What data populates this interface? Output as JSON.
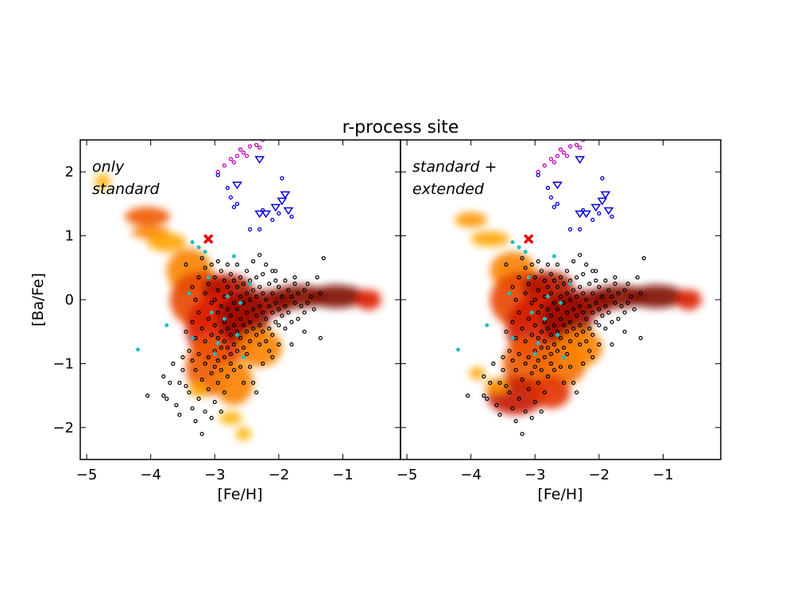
{
  "chart_data": {
    "type": "scatter",
    "title": "r-process site",
    "xlabel": "[Fe/H]",
    "ylabel": "[Ba/Fe]",
    "xlim": [
      -5.1,
      -0.1
    ],
    "ylim": [
      -2.5,
      2.5
    ],
    "xticks": [
      -5,
      -4,
      -3,
      -2,
      -1
    ],
    "yticks": [
      -2,
      -1,
      0,
      1,
      2
    ],
    "xtick_labels": [
      "−5",
      "−4",
      "−3",
      "−2",
      "−1"
    ],
    "ytick_labels": [
      "−2",
      "−1",
      "0",
      "1",
      "2"
    ],
    "grid": false,
    "colors": {
      "observations": "#000000",
      "cyan_points": "#1fbfbf",
      "magenta_points": "#bf00bf",
      "blue_points": "#0000dd",
      "cross": "#ee0000",
      "density_low": "#ffff00",
      "density_mid": "#ff6600",
      "density_high": "#5a0000"
    },
    "panels": [
      {
        "annotation": [
          "only",
          "standard"
        ],
        "density_model": [
          {
            "x": -4.75,
            "y": 1.85,
            "w": 0.12,
            "h": 0.12,
            "level": 0.3
          },
          {
            "x": -4.05,
            "y": 1.3,
            "w": 0.35,
            "h": 0.15,
            "level": 0.55
          },
          {
            "x": -4.0,
            "y": 1.05,
            "w": 0.3,
            "h": 0.1,
            "level": 0.45
          },
          {
            "x": -3.75,
            "y": 0.9,
            "w": 0.3,
            "h": 0.15,
            "level": 0.35
          },
          {
            "x": -3.4,
            "y": 0.45,
            "w": 0.35,
            "h": 0.35,
            "level": 0.45
          },
          {
            "x": -3.2,
            "y": 0.0,
            "w": 0.5,
            "h": 0.45,
            "level": 0.6
          },
          {
            "x": -2.8,
            "y": 0.15,
            "w": 0.4,
            "h": 0.25,
            "level": 0.8
          },
          {
            "x": -2.9,
            "y": -0.45,
            "w": 0.55,
            "h": 0.55,
            "level": 0.7
          },
          {
            "x": -2.55,
            "y": -0.3,
            "w": 0.4,
            "h": 0.4,
            "level": 0.85
          },
          {
            "x": -2.2,
            "y": -0.05,
            "w": 0.45,
            "h": 0.2,
            "level": 0.85
          },
          {
            "x": -1.7,
            "y": 0.05,
            "w": 0.45,
            "h": 0.18,
            "level": 0.9
          },
          {
            "x": -1.1,
            "y": 0.05,
            "w": 0.45,
            "h": 0.18,
            "level": 0.92
          },
          {
            "x": -0.6,
            "y": 0.0,
            "w": 0.2,
            "h": 0.16,
            "level": 0.7
          },
          {
            "x": -3.1,
            "y": -1.05,
            "w": 0.35,
            "h": 0.45,
            "level": 0.55
          },
          {
            "x": -2.7,
            "y": -1.3,
            "w": 0.3,
            "h": 0.35,
            "level": 0.45
          },
          {
            "x": -3.25,
            "y": -1.4,
            "w": 0.15,
            "h": 0.12,
            "level": 0.35
          },
          {
            "x": -2.75,
            "y": -1.85,
            "w": 0.18,
            "h": 0.1,
            "level": 0.3
          },
          {
            "x": -2.55,
            "y": -2.1,
            "w": 0.12,
            "h": 0.1,
            "level": 0.3
          },
          {
            "x": -2.3,
            "y": -0.75,
            "w": 0.35,
            "h": 0.3,
            "level": 0.45
          }
        ]
      },
      {
        "annotation": [
          "standard +",
          "extended"
        ],
        "density_model": [
          {
            "x": -4.0,
            "y": 1.25,
            "w": 0.25,
            "h": 0.12,
            "level": 0.4
          },
          {
            "x": -3.7,
            "y": 0.95,
            "w": 0.3,
            "h": 0.12,
            "level": 0.35
          },
          {
            "x": -3.35,
            "y": 0.45,
            "w": 0.35,
            "h": 0.3,
            "level": 0.45
          },
          {
            "x": -3.2,
            "y": 0.0,
            "w": 0.5,
            "h": 0.45,
            "level": 0.6
          },
          {
            "x": -2.8,
            "y": 0.2,
            "w": 0.4,
            "h": 0.25,
            "level": 0.8
          },
          {
            "x": -2.9,
            "y": -0.45,
            "w": 0.55,
            "h": 0.55,
            "level": 0.72
          },
          {
            "x": -2.5,
            "y": -0.3,
            "w": 0.4,
            "h": 0.4,
            "level": 0.85
          },
          {
            "x": -2.2,
            "y": -0.05,
            "w": 0.45,
            "h": 0.2,
            "level": 0.85
          },
          {
            "x": -1.7,
            "y": 0.05,
            "w": 0.45,
            "h": 0.18,
            "level": 0.9
          },
          {
            "x": -1.1,
            "y": 0.05,
            "w": 0.45,
            "h": 0.18,
            "level": 0.92
          },
          {
            "x": -0.6,
            "y": 0.0,
            "w": 0.2,
            "h": 0.16,
            "level": 0.7
          },
          {
            "x": -3.1,
            "y": -1.0,
            "w": 0.4,
            "h": 0.4,
            "level": 0.55
          },
          {
            "x": -2.6,
            "y": -1.0,
            "w": 0.4,
            "h": 0.35,
            "level": 0.5
          },
          {
            "x": -3.3,
            "y": -1.5,
            "w": 0.45,
            "h": 0.3,
            "level": 0.75
          },
          {
            "x": -2.75,
            "y": -1.45,
            "w": 0.3,
            "h": 0.25,
            "level": 0.65
          },
          {
            "x": -3.6,
            "y": -1.35,
            "w": 0.18,
            "h": 0.12,
            "level": 0.4
          },
          {
            "x": -3.9,
            "y": -1.15,
            "w": 0.12,
            "h": 0.1,
            "level": 0.35
          },
          {
            "x": -2.3,
            "y": -0.75,
            "w": 0.35,
            "h": 0.3,
            "level": 0.45
          }
        ]
      }
    ],
    "series_cyan": [
      [
        -4.2,
        -0.78
      ],
      [
        -3.75,
        -0.4
      ],
      [
        -3.4,
        0.1
      ],
      [
        -3.35,
        0.9
      ],
      [
        -3.25,
        0.82
      ],
      [
        -3.15,
        0.75
      ],
      [
        -3.05,
        -0.2
      ],
      [
        -2.95,
        -0.68
      ],
      [
        -2.8,
        0.05
      ],
      [
        -2.7,
        0.68
      ],
      [
        -2.65,
        -0.55
      ],
      [
        -2.6,
        -0.05
      ],
      [
        -2.55,
        -0.9
      ],
      [
        -2.45,
        0.25
      ],
      [
        -3.0,
        -0.85
      ],
      [
        -3.35,
        -0.6
      ],
      [
        -2.85,
        -0.3
      ],
      [
        -3.1,
        0.35
      ]
    ],
    "series_magenta": [
      [
        -2.95,
        2.0
      ],
      [
        -2.85,
        2.1
      ],
      [
        -2.75,
        2.2
      ],
      [
        -2.65,
        2.25
      ],
      [
        -2.6,
        2.35
      ],
      [
        -2.5,
        2.25
      ],
      [
        -2.45,
        2.4
      ],
      [
        -2.35,
        2.42
      ],
      [
        -2.3,
        2.38
      ],
      [
        -2.25,
        2.5
      ],
      [
        -2.3,
        2.55
      ],
      [
        -2.7,
        2.15
      ],
      [
        -2.55,
        2.3
      ]
    ],
    "series_blue_circles": [
      [
        -2.95,
        1.95
      ],
      [
        -2.8,
        1.75
      ],
      [
        -2.75,
        1.6
      ],
      [
        -2.7,
        1.45
      ],
      [
        -2.65,
        1.5
      ],
      [
        -2.45,
        1.1
      ],
      [
        -2.3,
        1.1
      ],
      [
        -2.1,
        1.25
      ],
      [
        -1.95,
        1.9
      ],
      [
        -1.8,
        1.3
      ],
      [
        -2.0,
        1.35
      ],
      [
        -2.25,
        1.4
      ]
    ],
    "series_blue_triangles": [
      [
        -2.65,
        1.8
      ],
      [
        -2.3,
        2.2
      ],
      [
        -2.3,
        1.35
      ],
      [
        -2.2,
        1.35
      ],
      [
        -2.05,
        1.45
      ],
      [
        -1.95,
        1.55
      ],
      [
        -1.9,
        1.65
      ],
      [
        -1.85,
        1.4
      ]
    ],
    "cross": [
      -3.1,
      0.95
    ],
    "observations": [
      [
        -4.05,
        -1.5
      ],
      [
        -3.8,
        -1.2
      ],
      [
        -3.8,
        -1.5
      ],
      [
        -3.75,
        -1.55
      ],
      [
        -3.7,
        -1.3
      ],
      [
        -3.65,
        -1.0
      ],
      [
        -3.6,
        -1.65
      ],
      [
        -3.55,
        -1.3
      ],
      [
        -3.55,
        -1.8
      ],
      [
        -3.5,
        -0.9
      ],
      [
        -3.5,
        -1.1
      ],
      [
        -3.45,
        -1.35
      ],
      [
        -3.45,
        0.55
      ],
      [
        -3.45,
        -0.5
      ],
      [
        -3.4,
        -0.8
      ],
      [
        -3.4,
        -1.45
      ],
      [
        -3.35,
        0.2
      ],
      [
        -3.35,
        -0.35
      ],
      [
        -3.35,
        -0.95
      ],
      [
        -3.35,
        -1.7
      ],
      [
        -3.3,
        0.0
      ],
      [
        -3.3,
        -0.6
      ],
      [
        -3.3,
        -1.1
      ],
      [
        -3.3,
        -1.9
      ],
      [
        -3.25,
        0.35
      ],
      [
        -3.25,
        -0.2
      ],
      [
        -3.25,
        -0.85
      ],
      [
        -3.25,
        -1.55
      ],
      [
        -3.2,
        0.65
      ],
      [
        -3.2,
        -0.45
      ],
      [
        -3.2,
        -1.25
      ],
      [
        -3.2,
        -2.1
      ],
      [
        -3.15,
        0.5
      ],
      [
        -3.15,
        0.1
      ],
      [
        -3.15,
        -0.65
      ],
      [
        -3.15,
        -1.0
      ],
      [
        -3.15,
        -1.75
      ],
      [
        -3.1,
        0.25
      ],
      [
        -3.1,
        -0.3
      ],
      [
        -3.1,
        -0.9
      ],
      [
        -3.1,
        -1.4
      ],
      [
        -3.05,
        0.55
      ],
      [
        -3.05,
        -0.05
      ],
      [
        -3.05,
        -0.55
      ],
      [
        -3.05,
        -1.15
      ],
      [
        -3.05,
        -1.85
      ],
      [
        -3.0,
        0.35
      ],
      [
        -3.0,
        0.0
      ],
      [
        -3.0,
        -0.4
      ],
      [
        -3.0,
        -0.8
      ],
      [
        -3.0,
        -1.05
      ],
      [
        -3.0,
        -1.6
      ],
      [
        -2.95,
        0.6
      ],
      [
        -2.95,
        0.15
      ],
      [
        -2.95,
        -0.2
      ],
      [
        -2.95,
        -0.6
      ],
      [
        -2.95,
        -0.95
      ],
      [
        -2.95,
        -1.3
      ],
      [
        -2.9,
        0.45
      ],
      [
        -2.9,
        -0.1
      ],
      [
        -2.9,
        -0.5
      ],
      [
        -2.9,
        -0.75
      ],
      [
        -2.9,
        -1.1
      ],
      [
        -2.9,
        -1.75
      ],
      [
        -2.85,
        0.3
      ],
      [
        -2.85,
        0.05
      ],
      [
        -2.85,
        -0.35
      ],
      [
        -2.85,
        -0.65
      ],
      [
        -2.85,
        -0.9
      ],
      [
        -2.85,
        -1.45
      ],
      [
        -2.8,
        0.55
      ],
      [
        -2.8,
        0.2
      ],
      [
        -2.8,
        -0.15
      ],
      [
        -2.8,
        -0.45
      ],
      [
        -2.8,
        -0.75
      ],
      [
        -2.8,
        -1.2
      ],
      [
        -2.75,
        0.4
      ],
      [
        -2.75,
        0.1
      ],
      [
        -2.75,
        -0.25
      ],
      [
        -2.75,
        -0.55
      ],
      [
        -2.75,
        -0.85
      ],
      [
        -2.75,
        -1.0
      ],
      [
        -2.7,
        0.3
      ],
      [
        -2.7,
        -0.05
      ],
      [
        -2.7,
        -0.4
      ],
      [
        -2.7,
        -0.7
      ],
      [
        -2.7,
        -1.1
      ],
      [
        -2.65,
        0.55
      ],
      [
        -2.65,
        0.2
      ],
      [
        -2.65,
        -0.15
      ],
      [
        -2.65,
        -0.5
      ],
      [
        -2.65,
        -0.8
      ],
      [
        -2.6,
        0.35
      ],
      [
        -2.6,
        0.05
      ],
      [
        -2.6,
        -0.3
      ],
      [
        -2.6,
        -0.6
      ],
      [
        -2.6,
        -1.05
      ],
      [
        -2.55,
        0.25
      ],
      [
        -2.55,
        -0.05
      ],
      [
        -2.55,
        -0.4
      ],
      [
        -2.55,
        -0.75
      ],
      [
        -2.5,
        0.45
      ],
      [
        -2.5,
        0.1
      ],
      [
        -2.5,
        -0.2
      ],
      [
        -2.5,
        -0.5
      ],
      [
        -2.5,
        -0.85
      ],
      [
        -2.45,
        0.3
      ],
      [
        -2.45,
        0.0
      ],
      [
        -2.45,
        -0.35
      ],
      [
        -2.45,
        -0.65
      ],
      [
        -2.4,
        0.6
      ],
      [
        -2.4,
        0.15
      ],
      [
        -2.4,
        -0.15
      ],
      [
        -2.4,
        -0.45
      ],
      [
        -2.4,
        -1.3
      ],
      [
        -2.35,
        0.35
      ],
      [
        -2.35,
        0.05
      ],
      [
        -2.35,
        -0.25
      ],
      [
        -2.35,
        -0.55
      ],
      [
        -2.3,
        0.7
      ],
      [
        -2.3,
        0.2
      ],
      [
        -2.3,
        -0.1
      ],
      [
        -2.3,
        -0.4
      ],
      [
        -2.3,
        -0.7
      ],
      [
        -2.25,
        0.4
      ],
      [
        -2.25,
        0.1
      ],
      [
        -2.25,
        -0.2
      ],
      [
        -2.25,
        -0.5
      ],
      [
        -2.2,
        0.55
      ],
      [
        -2.2,
        0.0
      ],
      [
        -2.2,
        -0.3
      ],
      [
        -2.2,
        -0.65
      ],
      [
        -2.15,
        0.25
      ],
      [
        -2.15,
        -0.1
      ],
      [
        -2.15,
        -0.45
      ],
      [
        -2.1,
        0.45
      ],
      [
        -2.1,
        0.1
      ],
      [
        -2.1,
        -0.2
      ],
      [
        -2.1,
        -0.55
      ],
      [
        -2.05,
        0.3
      ],
      [
        -2.05,
        -0.05
      ],
      [
        -2.05,
        -0.35
      ],
      [
        -2.0,
        0.2
      ],
      [
        -2.0,
        -0.15
      ],
      [
        -2.0,
        -0.4
      ],
      [
        -2.0,
        -0.7
      ],
      [
        -1.95,
        0.05
      ],
      [
        -1.95,
        -0.25
      ],
      [
        -1.9,
        0.3
      ],
      [
        -1.9,
        -0.1
      ],
      [
        -1.9,
        -0.45
      ],
      [
        -1.85,
        0.15
      ],
      [
        -1.85,
        -0.2
      ],
      [
        -1.8,
        0.05
      ],
      [
        -1.8,
        -0.35
      ],
      [
        -1.75,
        -0.05
      ],
      [
        -1.75,
        0.25
      ],
      [
        -1.7,
        0.1
      ],
      [
        -1.7,
        -0.3
      ],
      [
        -1.65,
        -0.1
      ],
      [
        -1.6,
        0.15
      ],
      [
        -1.6,
        -0.2
      ],
      [
        -1.55,
        -0.05
      ],
      [
        -1.5,
        0.05
      ],
      [
        -1.45,
        -0.15
      ],
      [
        -1.4,
        0.35
      ],
      [
        -1.35,
        0.1
      ],
      [
        -1.3,
        0.65
      ],
      [
        -1.35,
        -0.6
      ],
      [
        -1.6,
        -0.5
      ],
      [
        -1.8,
        -0.7
      ],
      [
        -2.1,
        -0.9
      ],
      [
        -2.45,
        -1.05
      ],
      [
        -2.55,
        -1.3
      ],
      [
        -2.35,
        -1.45
      ],
      [
        -2.25,
        -1.0
      ],
      [
        -2.15,
        -0.8
      ],
      [
        -1.75,
        0.35
      ],
      [
        -2.05,
        0.45
      ],
      [
        -1.55,
        0.25
      ]
    ]
  }
}
